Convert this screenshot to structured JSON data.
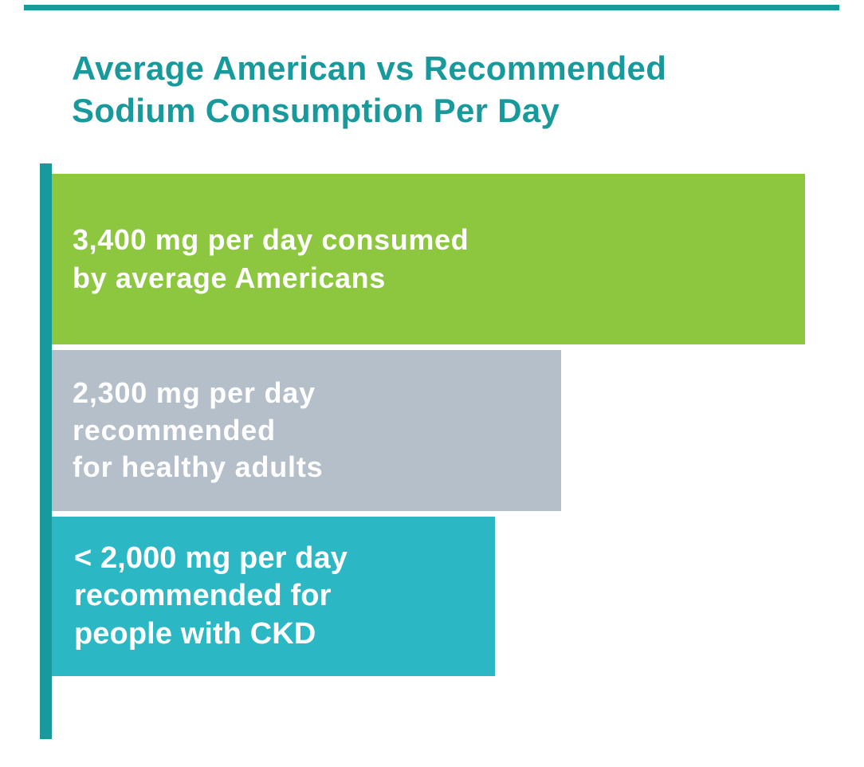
{
  "page": {
    "title_line1": "Average American vs Recommended",
    "title_line2": "Sodium Consumption Per Day"
  },
  "chart_data": {
    "type": "bar",
    "orientation": "horizontal",
    "title": "Average American vs Recommended Sodium Consumption Per Day",
    "unit": "mg sodium per day",
    "xlim": [
      0,
      3400
    ],
    "grid": false,
    "legend": false,
    "categories": [
      "Consumed by average Americans",
      "Recommended for healthy adults",
      "Recommended for people with CKD"
    ],
    "values": [
      3400,
      2300,
      2000
    ],
    "bars": [
      {
        "value": 3400,
        "label_lines": [
          "3,400 mg per day consumed",
          "by average Americans"
        ],
        "color": "#8dc63f"
      },
      {
        "value": 2300,
        "label_lines": [
          "2,300 mg per day",
          "recommended",
          "for healthy adults"
        ],
        "color": "#b4bfca"
      },
      {
        "value": 2000,
        "label_lines": [
          "< 2,000 mg per day",
          "recommended for",
          "people with CKD"
        ],
        "color": "#2bb8c4"
      }
    ]
  },
  "colors": {
    "title": "#18999b",
    "axis": "#18999b",
    "accent_line": "#18999b",
    "bar_text": "#ffffff"
  }
}
